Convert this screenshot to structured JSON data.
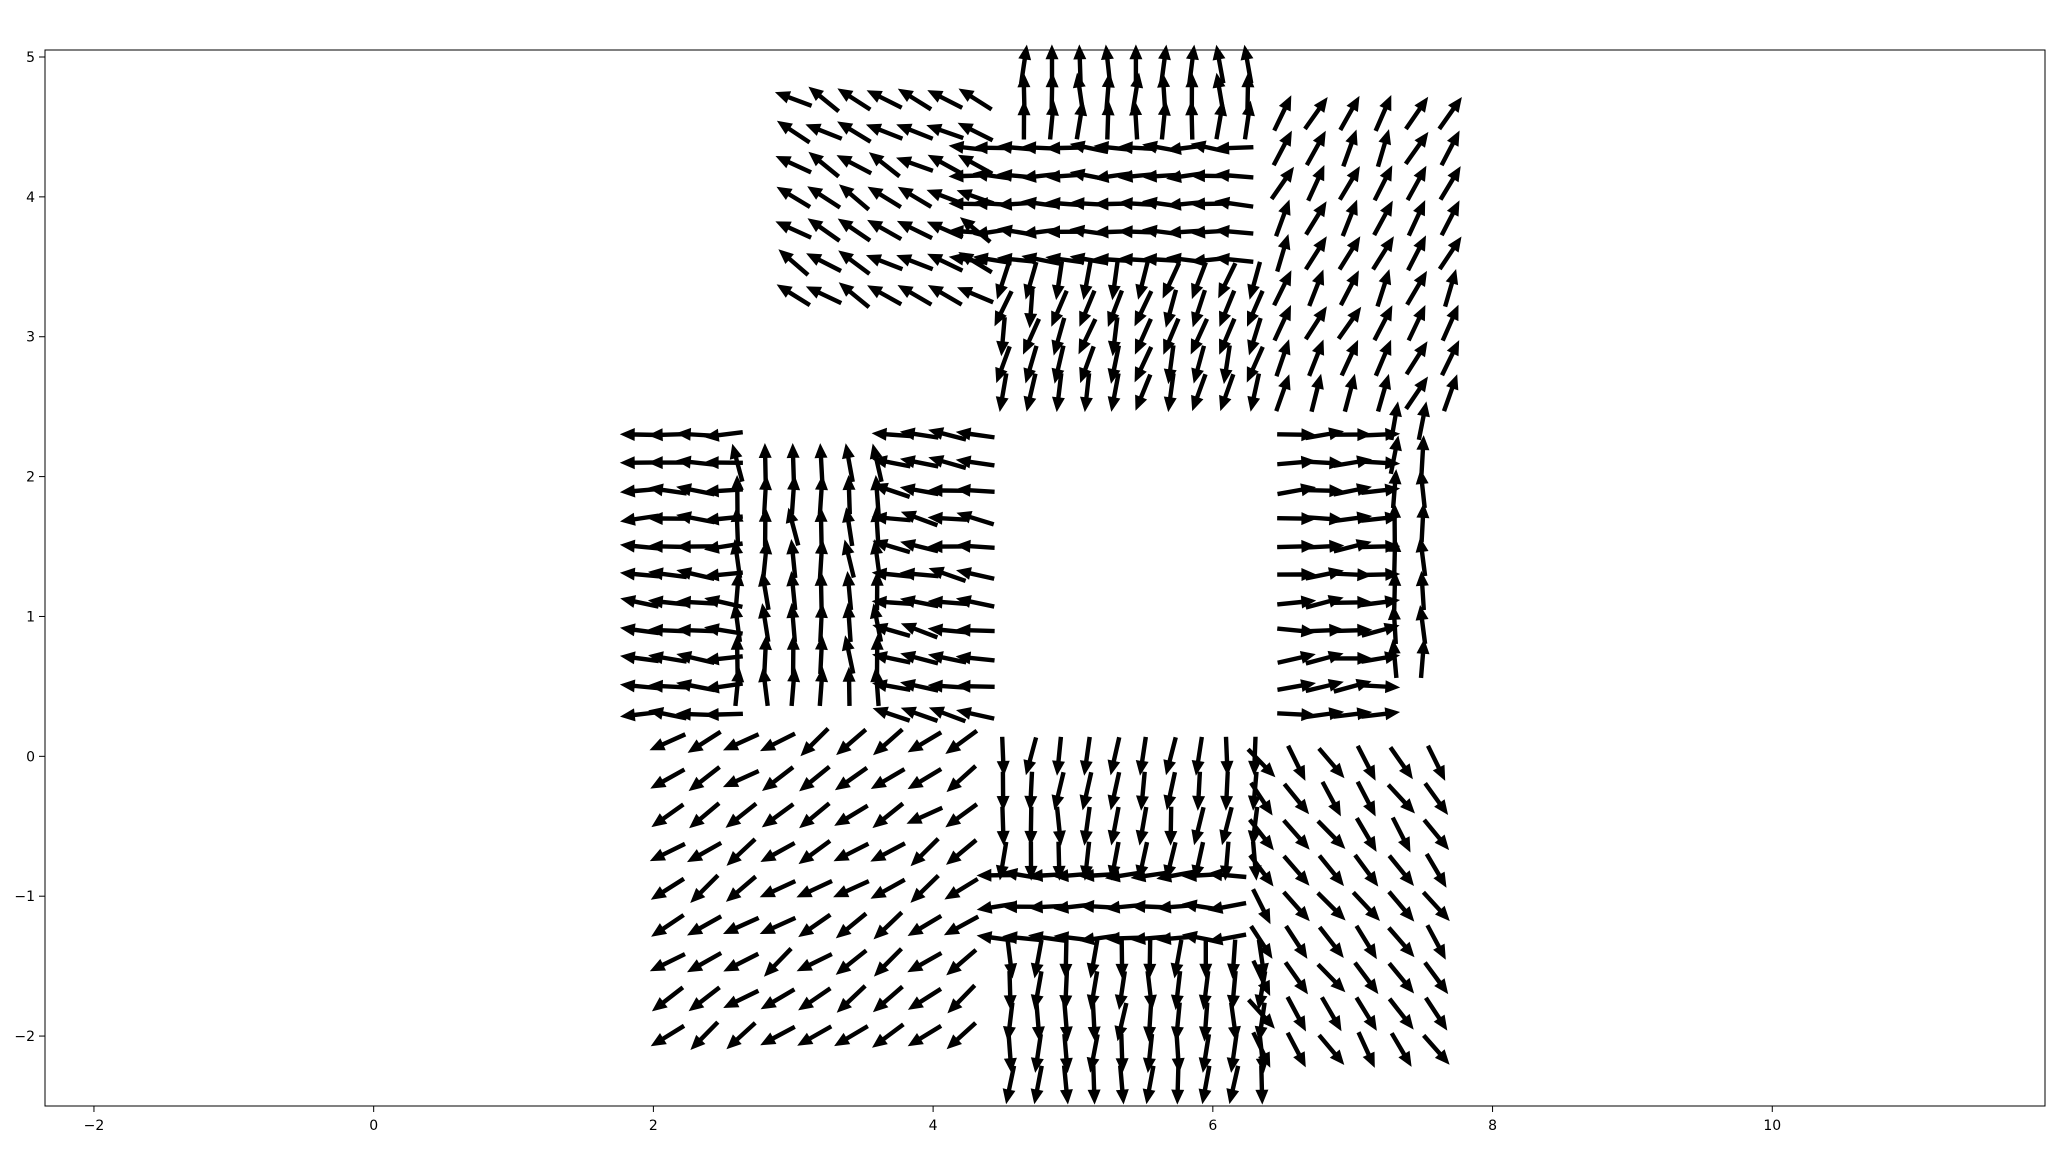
{
  "chart_data": {
    "type": "quiver",
    "title": "",
    "xlabel": "",
    "ylabel": "",
    "xlim": [
      -2.35,
      11.95
    ],
    "ylim": [
      -2.5,
      5.05
    ],
    "x_ticks": [
      -2,
      0,
      2,
      4,
      6,
      8,
      10
    ],
    "x_tick_labels": [
      "−2",
      "0",
      "2",
      "4",
      "6",
      "8",
      "10"
    ],
    "y_ticks": [
      -2,
      -1,
      0,
      1,
      2,
      3,
      4,
      5
    ],
    "y_tick_labels": [
      "−2",
      "−1",
      "0",
      "1",
      "2",
      "3",
      "4",
      "5"
    ],
    "grid": false,
    "arrow_color": "#000000",
    "arrow_length": 0.28,
    "empty_region": {
      "x": [
        4.35,
        6.45
      ],
      "y": [
        0.2,
        2.35
      ]
    },
    "regions": [
      {
        "name": "top-upward",
        "x_range": [
          4.65,
          6.25
        ],
        "y_range": [
          4.55,
          4.95
        ],
        "nx": 9,
        "ny": 3,
        "dir_deg": 90
      },
      {
        "name": "top-leftward",
        "x_range": [
          4.25,
          6.15
        ],
        "y_range": [
          3.55,
          4.35
        ],
        "nx": 12,
        "ny": 5,
        "dir_deg": 178
      },
      {
        "name": "top-inner-downward",
        "x_range": [
          4.5,
          6.3
        ],
        "y_range": [
          2.6,
          3.4
        ],
        "nx": 10,
        "ny": 5,
        "dir_deg": 255
      },
      {
        "name": "upper-left-diagonal",
        "x_range": [
          3.0,
          4.3
        ],
        "y_range": [
          3.3,
          4.7
        ],
        "nx": 7,
        "ny": 7,
        "dir_deg": 150
      },
      {
        "name": "upper-right-diagonal",
        "x_range": [
          6.5,
          7.7
        ],
        "y_range": [
          2.6,
          4.6
        ],
        "nx": 6,
        "ny": 9,
        "dir_deg": 65
      },
      {
        "name": "right-inner-rightward",
        "x_range": [
          6.6,
          7.2
        ],
        "y_range": [
          0.3,
          2.3
        ],
        "nx": 4,
        "ny": 11,
        "dir_deg": 5
      },
      {
        "name": "right-outer-upward",
        "x_range": [
          7.3,
          7.5
        ],
        "y_range": [
          0.7,
          2.4
        ],
        "nx": 2,
        "ny": 8,
        "dir_deg": 88
      },
      {
        "name": "far-left-leftward",
        "x_range": [
          1.9,
          2.5
        ],
        "y_range": [
          0.3,
          2.3
        ],
        "nx": 4,
        "ny": 11,
        "dir_deg": 178
      },
      {
        "name": "left-middle-upward",
        "x_range": [
          2.6,
          3.6
        ],
        "y_range": [
          0.5,
          2.1
        ],
        "nx": 6,
        "ny": 8,
        "dir_deg": 95
      },
      {
        "name": "left-inner-leftward",
        "x_range": [
          3.7,
          4.3
        ],
        "y_range": [
          0.3,
          2.3
        ],
        "nx": 4,
        "ny": 11,
        "dir_deg": 170
      },
      {
        "name": "lower-left-diagonal",
        "x_range": [
          2.1,
          4.2
        ],
        "y_range": [
          -2.0,
          0.1
        ],
        "nx": 9,
        "ny": 9,
        "dir_deg": 215
      },
      {
        "name": "bottom-inner-downward",
        "x_range": [
          4.5,
          6.3
        ],
        "y_range": [
          -0.75,
          0.0
        ],
        "nx": 10,
        "ny": 4,
        "dir_deg": 265
      },
      {
        "name": "bottom-leftward",
        "x_range": [
          4.45,
          6.1
        ],
        "y_range": [
          -1.3,
          -0.85
        ],
        "nx": 10,
        "ny": 3,
        "dir_deg": 180
      },
      {
        "name": "bottom-outer-downward",
        "x_range": [
          4.55,
          6.35
        ],
        "y_range": [
          -2.35,
          -1.45
        ],
        "nx": 10,
        "ny": 5,
        "dir_deg": 268
      },
      {
        "name": "lower-right-diagonal",
        "x_range": [
          6.35,
          7.6
        ],
        "y_range": [
          -2.1,
          -0.05
        ],
        "nx": 6,
        "ny": 9,
        "dir_deg": 305
      }
    ]
  },
  "window": {
    "background_color": "#ffffff",
    "axes_edge_color": "#000000"
  }
}
